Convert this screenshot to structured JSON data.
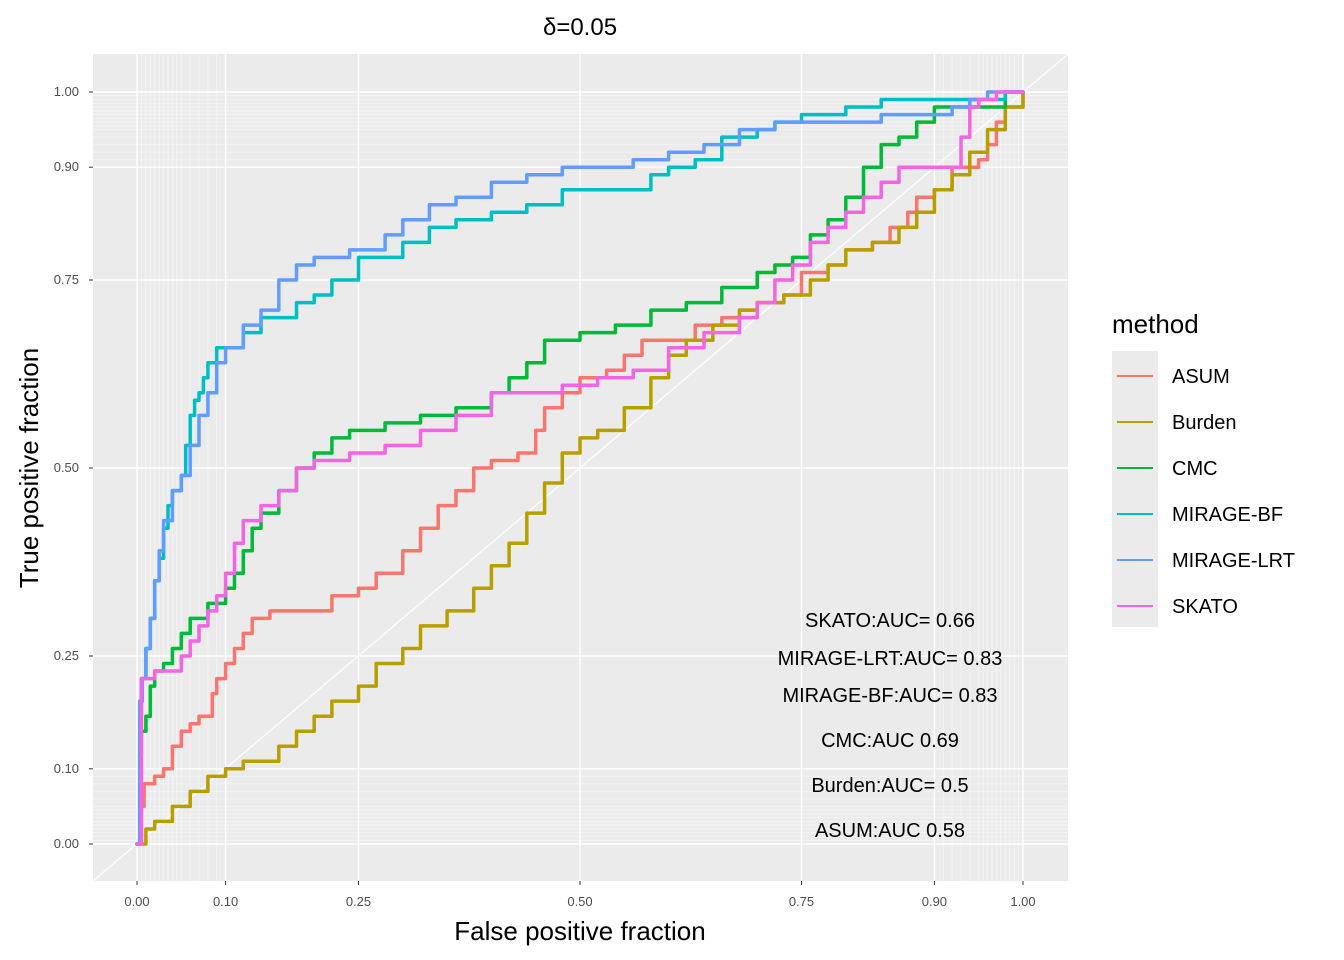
{
  "chart_data": {
    "type": "line",
    "title": "δ=0.05",
    "xlabel": "False positive fraction",
    "ylabel": "True positive fraction",
    "xlim": [
      0,
      1
    ],
    "ylim": [
      0,
      1
    ],
    "x_ticks": [
      0.0,
      0.1,
      0.25,
      0.5,
      0.75,
      0.9,
      1.0
    ],
    "x_tick_labels": [
      "0.00",
      "0.10",
      "0.25",
      "0.50",
      "0.75",
      "0.90",
      "1.00"
    ],
    "y_ticks": [
      0.0,
      0.1,
      0.25,
      0.5,
      0.75,
      0.9,
      1.0
    ],
    "y_tick_labels": [
      "0.00",
      "0.10",
      "0.25",
      "0.50",
      "0.75",
      "0.90",
      "1.00"
    ],
    "minor_ticks": [
      0.005,
      0.01,
      0.015,
      0.02,
      0.025,
      0.03,
      0.035,
      0.04,
      0.045,
      0.05,
      0.06,
      0.07,
      0.08,
      0.09,
      0.91,
      0.92,
      0.93,
      0.94,
      0.95,
      0.955,
      0.96,
      0.965,
      0.97,
      0.975,
      0.98,
      0.985,
      0.99,
      0.995
    ],
    "grid": true,
    "reference_line": "diagonal",
    "legend": {
      "title": "method",
      "position": "right"
    },
    "series": [
      {
        "name": "ASUM",
        "color": "#F8766D",
        "points": [
          [
            0,
            0
          ],
          [
            0.005,
            0.05
          ],
          [
            0.008,
            0.08
          ],
          [
            0.02,
            0.09
          ],
          [
            0.03,
            0.1
          ],
          [
            0.04,
            0.13
          ],
          [
            0.05,
            0.15
          ],
          [
            0.06,
            0.16
          ],
          [
            0.07,
            0.17
          ],
          [
            0.08,
            0.17
          ],
          [
            0.085,
            0.2
          ],
          [
            0.09,
            0.22
          ],
          [
            0.1,
            0.24
          ],
          [
            0.11,
            0.26
          ],
          [
            0.12,
            0.28
          ],
          [
            0.13,
            0.3
          ],
          [
            0.15,
            0.31
          ],
          [
            0.2,
            0.31
          ],
          [
            0.22,
            0.33
          ],
          [
            0.25,
            0.34
          ],
          [
            0.27,
            0.36
          ],
          [
            0.3,
            0.39
          ],
          [
            0.32,
            0.42
          ],
          [
            0.34,
            0.45
          ],
          [
            0.36,
            0.47
          ],
          [
            0.38,
            0.5
          ],
          [
            0.4,
            0.51
          ],
          [
            0.43,
            0.52
          ],
          [
            0.45,
            0.55
          ],
          [
            0.46,
            0.58
          ],
          [
            0.48,
            0.6
          ],
          [
            0.5,
            0.62
          ],
          [
            0.53,
            0.63
          ],
          [
            0.55,
            0.65
          ],
          [
            0.57,
            0.67
          ],
          [
            0.6,
            0.67
          ],
          [
            0.63,
            0.69
          ],
          [
            0.66,
            0.7
          ],
          [
            0.68,
            0.71
          ],
          [
            0.7,
            0.72
          ],
          [
            0.73,
            0.73
          ],
          [
            0.75,
            0.76
          ],
          [
            0.78,
            0.77
          ],
          [
            0.8,
            0.79
          ],
          [
            0.83,
            0.8
          ],
          [
            0.85,
            0.82
          ],
          [
            0.87,
            0.84
          ],
          [
            0.88,
            0.86
          ],
          [
            0.9,
            0.87
          ],
          [
            0.92,
            0.9
          ],
          [
            0.95,
            0.91
          ],
          [
            0.96,
            0.93
          ],
          [
            0.97,
            0.96
          ],
          [
            0.98,
            0.98
          ],
          [
            1,
            1
          ]
        ]
      },
      {
        "name": "Burden",
        "color": "#B79F00",
        "points": [
          [
            0,
            0
          ],
          [
            0.01,
            0.02
          ],
          [
            0.02,
            0.03
          ],
          [
            0.04,
            0.05
          ],
          [
            0.06,
            0.07
          ],
          [
            0.08,
            0.09
          ],
          [
            0.1,
            0.1
          ],
          [
            0.12,
            0.11
          ],
          [
            0.16,
            0.13
          ],
          [
            0.18,
            0.15
          ],
          [
            0.2,
            0.17
          ],
          [
            0.22,
            0.19
          ],
          [
            0.25,
            0.21
          ],
          [
            0.27,
            0.24
          ],
          [
            0.3,
            0.26
          ],
          [
            0.32,
            0.29
          ],
          [
            0.35,
            0.31
          ],
          [
            0.38,
            0.34
          ],
          [
            0.4,
            0.37
          ],
          [
            0.42,
            0.4
          ],
          [
            0.44,
            0.44
          ],
          [
            0.46,
            0.48
          ],
          [
            0.48,
            0.52
          ],
          [
            0.5,
            0.54
          ],
          [
            0.52,
            0.55
          ],
          [
            0.55,
            0.58
          ],
          [
            0.58,
            0.62
          ],
          [
            0.6,
            0.65
          ],
          [
            0.62,
            0.67
          ],
          [
            0.65,
            0.69
          ],
          [
            0.68,
            0.71
          ],
          [
            0.7,
            0.72
          ],
          [
            0.73,
            0.73
          ],
          [
            0.76,
            0.75
          ],
          [
            0.78,
            0.77
          ],
          [
            0.8,
            0.79
          ],
          [
            0.83,
            0.8
          ],
          [
            0.86,
            0.82
          ],
          [
            0.88,
            0.84
          ],
          [
            0.9,
            0.87
          ],
          [
            0.92,
            0.89
          ],
          [
            0.94,
            0.92
          ],
          [
            0.96,
            0.95
          ],
          [
            0.98,
            0.98
          ],
          [
            1,
            1
          ]
        ]
      },
      {
        "name": "CMC",
        "color": "#00BA38",
        "points": [
          [
            0,
            0
          ],
          [
            0.003,
            0.12
          ],
          [
            0.005,
            0.15
          ],
          [
            0.01,
            0.17
          ],
          [
            0.015,
            0.21
          ],
          [
            0.02,
            0.23
          ],
          [
            0.03,
            0.24
          ],
          [
            0.04,
            0.26
          ],
          [
            0.05,
            0.28
          ],
          [
            0.06,
            0.3
          ],
          [
            0.08,
            0.32
          ],
          [
            0.1,
            0.34
          ],
          [
            0.11,
            0.36
          ],
          [
            0.12,
            0.39
          ],
          [
            0.13,
            0.42
          ],
          [
            0.14,
            0.44
          ],
          [
            0.16,
            0.47
          ],
          [
            0.18,
            0.5
          ],
          [
            0.2,
            0.52
          ],
          [
            0.22,
            0.54
          ],
          [
            0.24,
            0.55
          ],
          [
            0.28,
            0.56
          ],
          [
            0.32,
            0.57
          ],
          [
            0.36,
            0.58
          ],
          [
            0.4,
            0.6
          ],
          [
            0.42,
            0.62
          ],
          [
            0.44,
            0.64
          ],
          [
            0.46,
            0.67
          ],
          [
            0.5,
            0.68
          ],
          [
            0.54,
            0.69
          ],
          [
            0.58,
            0.71
          ],
          [
            0.62,
            0.72
          ],
          [
            0.66,
            0.74
          ],
          [
            0.7,
            0.76
          ],
          [
            0.72,
            0.77
          ],
          [
            0.74,
            0.78
          ],
          [
            0.76,
            0.81
          ],
          [
            0.78,
            0.83
          ],
          [
            0.8,
            0.86
          ],
          [
            0.82,
            0.9
          ],
          [
            0.84,
            0.93
          ],
          [
            0.86,
            0.94
          ],
          [
            0.88,
            0.96
          ],
          [
            0.9,
            0.98
          ],
          [
            0.95,
            0.98
          ],
          [
            0.97,
            0.98
          ],
          [
            0.98,
            1
          ],
          [
            1,
            1
          ]
        ]
      },
      {
        "name": "MIRAGE-BF",
        "color": "#00BFC4",
        "points": [
          [
            0,
            0
          ],
          [
            0.003,
            0.17
          ],
          [
            0.005,
            0.22
          ],
          [
            0.01,
            0.26
          ],
          [
            0.015,
            0.3
          ],
          [
            0.02,
            0.35
          ],
          [
            0.025,
            0.38
          ],
          [
            0.03,
            0.42
          ],
          [
            0.035,
            0.45
          ],
          [
            0.04,
            0.47
          ],
          [
            0.05,
            0.49
          ],
          [
            0.055,
            0.53
          ],
          [
            0.06,
            0.57
          ],
          [
            0.065,
            0.59
          ],
          [
            0.07,
            0.6
          ],
          [
            0.075,
            0.62
          ],
          [
            0.08,
            0.64
          ],
          [
            0.09,
            0.66
          ],
          [
            0.1,
            0.66
          ],
          [
            0.12,
            0.68
          ],
          [
            0.14,
            0.7
          ],
          [
            0.16,
            0.7
          ],
          [
            0.18,
            0.72
          ],
          [
            0.2,
            0.73
          ],
          [
            0.22,
            0.75
          ],
          [
            0.25,
            0.78
          ],
          [
            0.3,
            0.8
          ],
          [
            0.33,
            0.82
          ],
          [
            0.36,
            0.83
          ],
          [
            0.4,
            0.84
          ],
          [
            0.44,
            0.85
          ],
          [
            0.48,
            0.87
          ],
          [
            0.52,
            0.87
          ],
          [
            0.58,
            0.89
          ],
          [
            0.6,
            0.9
          ],
          [
            0.63,
            0.91
          ],
          [
            0.66,
            0.94
          ],
          [
            0.7,
            0.95
          ],
          [
            0.72,
            0.96
          ],
          [
            0.75,
            0.97
          ],
          [
            0.78,
            0.97
          ],
          [
            0.8,
            0.98
          ],
          [
            0.84,
            0.99
          ],
          [
            0.86,
            0.99
          ],
          [
            0.9,
            0.99
          ],
          [
            0.95,
            0.99
          ],
          [
            0.97,
            0.99
          ],
          [
            0.98,
            1
          ],
          [
            1,
            1
          ]
        ]
      },
      {
        "name": "MIRAGE-LRT",
        "color": "#619CFF",
        "points": [
          [
            0,
            0
          ],
          [
            0.003,
            0.19
          ],
          [
            0.006,
            0.22
          ],
          [
            0.01,
            0.26
          ],
          [
            0.015,
            0.3
          ],
          [
            0.02,
            0.35
          ],
          [
            0.025,
            0.39
          ],
          [
            0.03,
            0.43
          ],
          [
            0.04,
            0.47
          ],
          [
            0.05,
            0.49
          ],
          [
            0.06,
            0.53
          ],
          [
            0.07,
            0.57
          ],
          [
            0.08,
            0.6
          ],
          [
            0.09,
            0.64
          ],
          [
            0.1,
            0.66
          ],
          [
            0.12,
            0.69
          ],
          [
            0.14,
            0.71
          ],
          [
            0.16,
            0.75
          ],
          [
            0.18,
            0.77
          ],
          [
            0.2,
            0.78
          ],
          [
            0.24,
            0.79
          ],
          [
            0.28,
            0.81
          ],
          [
            0.3,
            0.83
          ],
          [
            0.33,
            0.85
          ],
          [
            0.36,
            0.86
          ],
          [
            0.4,
            0.88
          ],
          [
            0.44,
            0.89
          ],
          [
            0.48,
            0.9
          ],
          [
            0.52,
            0.9
          ],
          [
            0.56,
            0.91
          ],
          [
            0.6,
            0.92
          ],
          [
            0.64,
            0.93
          ],
          [
            0.68,
            0.95
          ],
          [
            0.72,
            0.96
          ],
          [
            0.76,
            0.96
          ],
          [
            0.8,
            0.96
          ],
          [
            0.84,
            0.97
          ],
          [
            0.88,
            0.97
          ],
          [
            0.9,
            0.97
          ],
          [
            0.92,
            0.98
          ],
          [
            0.94,
            0.99
          ],
          [
            0.96,
            1
          ],
          [
            1,
            1
          ]
        ]
      },
      {
        "name": "SKATO",
        "color": "#F564E3",
        "points": [
          [
            0,
            0
          ],
          [
            0.005,
            0.22
          ],
          [
            0.02,
            0.23
          ],
          [
            0.04,
            0.23
          ],
          [
            0.05,
            0.25
          ],
          [
            0.06,
            0.27
          ],
          [
            0.07,
            0.29
          ],
          [
            0.08,
            0.31
          ],
          [
            0.09,
            0.33
          ],
          [
            0.1,
            0.36
          ],
          [
            0.11,
            0.4
          ],
          [
            0.12,
            0.43
          ],
          [
            0.14,
            0.45
          ],
          [
            0.16,
            0.47
          ],
          [
            0.18,
            0.5
          ],
          [
            0.2,
            0.51
          ],
          [
            0.24,
            0.52
          ],
          [
            0.28,
            0.53
          ],
          [
            0.32,
            0.55
          ],
          [
            0.36,
            0.57
          ],
          [
            0.4,
            0.6
          ],
          [
            0.44,
            0.6
          ],
          [
            0.48,
            0.61
          ],
          [
            0.52,
            0.62
          ],
          [
            0.56,
            0.63
          ],
          [
            0.6,
            0.66
          ],
          [
            0.64,
            0.68
          ],
          [
            0.68,
            0.7
          ],
          [
            0.7,
            0.72
          ],
          [
            0.72,
            0.75
          ],
          [
            0.74,
            0.77
          ],
          [
            0.76,
            0.8
          ],
          [
            0.78,
            0.82
          ],
          [
            0.8,
            0.84
          ],
          [
            0.82,
            0.86
          ],
          [
            0.84,
            0.88
          ],
          [
            0.86,
            0.9
          ],
          [
            0.88,
            0.9
          ],
          [
            0.92,
            0.9
          ],
          [
            0.93,
            0.94
          ],
          [
            0.94,
            0.98
          ],
          [
            0.95,
            0.99
          ],
          [
            0.97,
            1
          ],
          [
            1,
            1
          ]
        ]
      }
    ],
    "annotations": [
      "SKATO:AUC= 0.66",
      "MIRAGE-LRT:AUC= 0.83",
      "MIRAGE-BF:AUC= 0.83",
      "CMC:AUC 0.69",
      "Burden:AUC= 0.5",
      "ASUM:AUC 0.58"
    ]
  }
}
